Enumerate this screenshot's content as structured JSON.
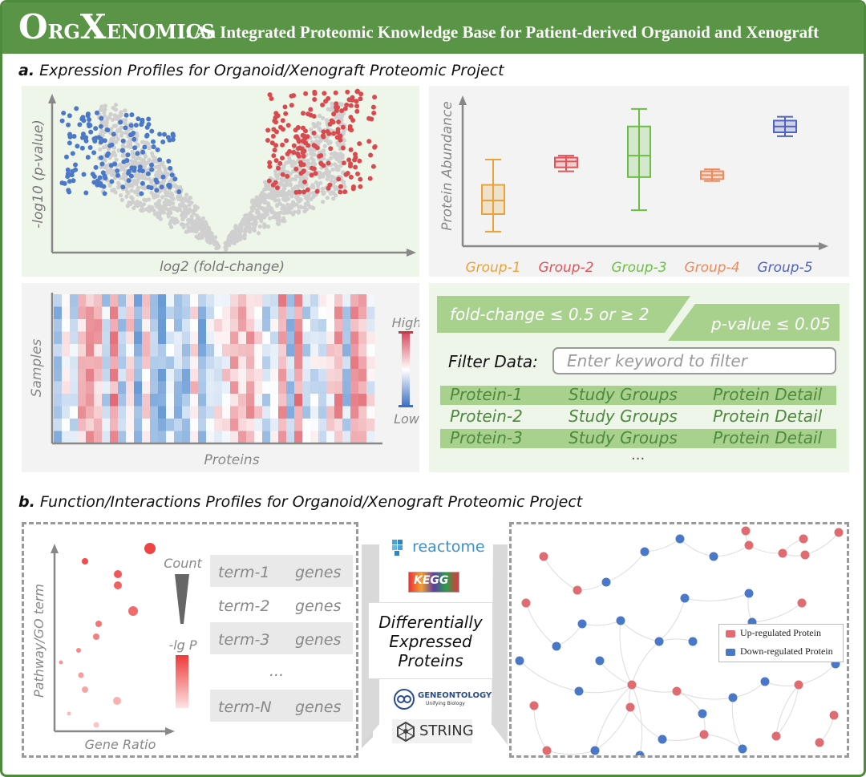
{
  "header": {
    "logo_big_1": "O",
    "logo_small_1": "RG",
    "logo_big_2": "X",
    "logo_small_2": "ENOMICS",
    "subtitle": ": An Integrated Proteomic Knowledge Base for Patient-derived Organoid and Xenograft"
  },
  "section_a": {
    "letter": "a.",
    "title": "Expression Profiles for Organoid/Xenograft Proteomic Project",
    "volcano": {
      "xlabel": "log2 (fold-change)",
      "ylabel": "-log10 (p-value)"
    },
    "boxplot": {
      "ylabel": "Protein Abundance"
    },
    "heatmap": {
      "xlabel": "Proteins",
      "ylabel": "Samples",
      "high": "High",
      "low": "Low"
    },
    "filters": {
      "fold_change": "fold-change ≤ 0.5 or ≥ 2",
      "p_value": "p-value ≤ 0.05",
      "filter_label": "Filter Data:",
      "filter_placeholder": "Enter keyword to filter"
    },
    "table": {
      "rows": [
        {
          "protein": "Protein-1",
          "groups": "Study Groups",
          "detail": "Protein Detail"
        },
        {
          "protein": "Protein-2",
          "groups": "Study Groups",
          "detail": "Protein Detail"
        },
        {
          "protein": "Protein-3",
          "groups": "Study Groups",
          "detail": "Protein Detail"
        }
      ],
      "ellipsis": "..."
    }
  },
  "section_b": {
    "letter": "b.",
    "title": "Function/Interactions Profiles for Organoid/Xenograft Proteomic Project",
    "dotplot": {
      "xlabel": "Gene Ratio",
      "ylabel": "Pathway/GO term",
      "count_label": "Count",
      "lgp_label": "-lg P"
    },
    "terms": [
      {
        "term": "term-1",
        "genes": "genes"
      },
      {
        "term": "term-2",
        "genes": "genes"
      },
      {
        "term": "term-3",
        "genes": "genes"
      },
      {
        "term": "...",
        "genes": ""
      },
      {
        "term": "term-N",
        "genes": "genes"
      }
    ],
    "center": {
      "line1": "Differentially",
      "line2": "Expressed",
      "line3": "Proteins"
    },
    "databases": {
      "reactome": "reactome",
      "kegg": "KEGG",
      "go_main": "GENEONTOLOGY",
      "go_sub": "Unifying Biology",
      "string": "STRING"
    },
    "network_legend": {
      "up": "Up-regulated Protein",
      "down": "Down-regulated Protein"
    }
  },
  "chart_data": [
    {
      "type": "box",
      "ylabel": "Protein Abundance",
      "categories": [
        "Group-1",
        "Group-2",
        "Group-3",
        "Group-4",
        "Group-5"
      ],
      "colors": [
        "#e8a33a",
        "#e0545a",
        "#6cbf45",
        "#f08a5a",
        "#5063c0"
      ],
      "boxes": [
        {
          "min": 3.5,
          "q1": 4.4,
          "median": 5.1,
          "q3": 5.9,
          "max": 7.2
        },
        {
          "min": 6.6,
          "q1": 6.8,
          "median": 7.1,
          "q3": 7.3,
          "max": 7.4
        },
        {
          "min": 4.6,
          "q1": 6.3,
          "median": 7.4,
          "q3": 8.9,
          "max": 9.8
        },
        {
          "min": 6.1,
          "q1": 6.2,
          "median": 6.4,
          "q3": 6.6,
          "max": 6.7
        },
        {
          "min": 8.4,
          "q1": 8.6,
          "median": 8.9,
          "q3": 9.2,
          "max": 9.4
        }
      ]
    }
  ]
}
